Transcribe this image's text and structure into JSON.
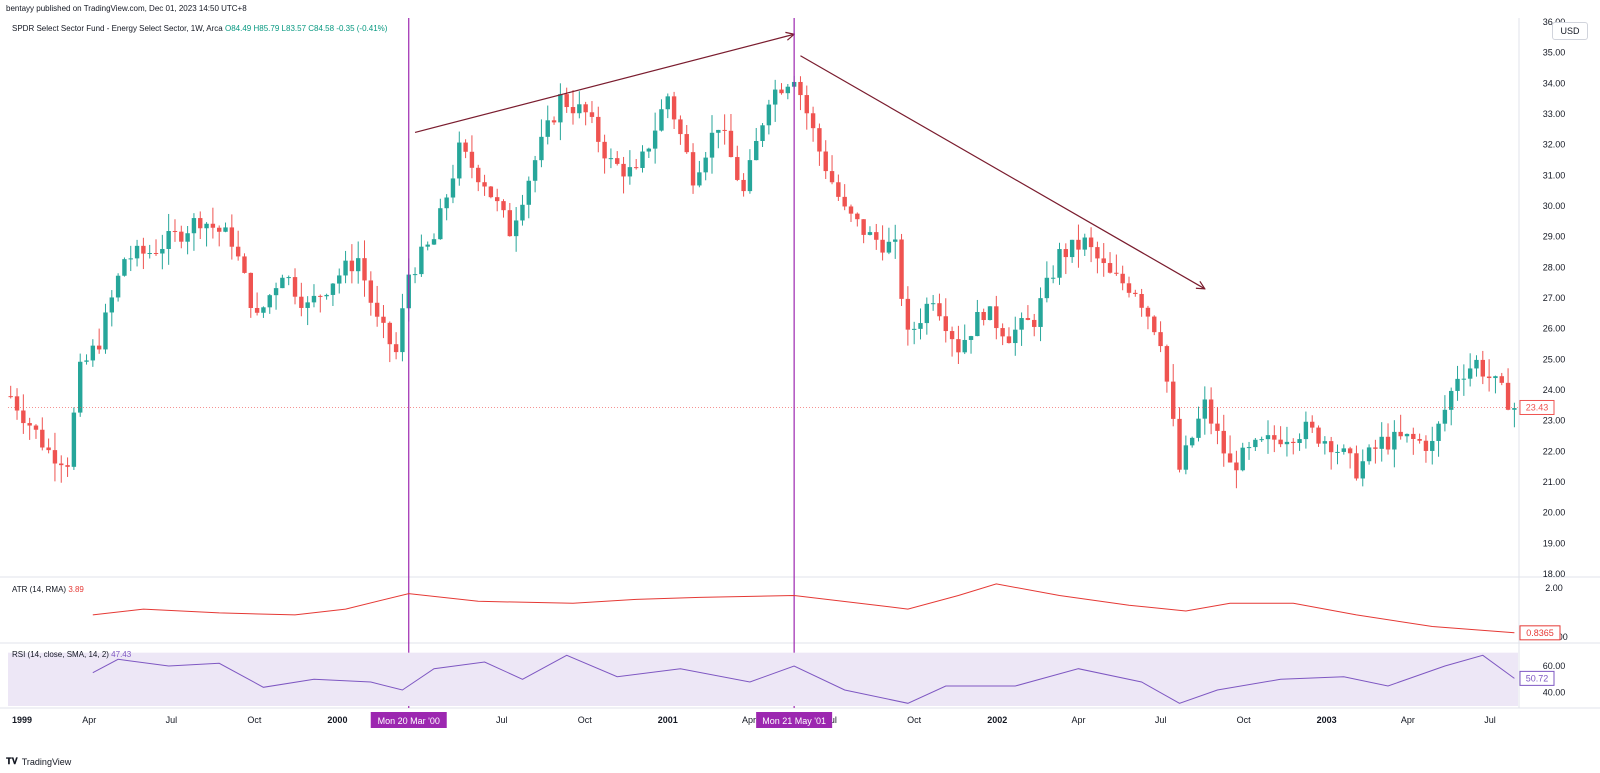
{
  "header": {
    "published": "bentayy published on TradingView.com, Dec 01, 2023 14:50 UTC+8"
  },
  "legend": {
    "symbol": "SPDR Select Sector Fund - Energy Select Sector, 1W, Arca",
    "open_label": "O",
    "open": "84.49",
    "high_label": "H",
    "high": "85.79",
    "low_label": "L",
    "low": "83.57",
    "close_label": "C",
    "close": "84.58",
    "change": "-0.35 (-0.41%)"
  },
  "currency": "USD",
  "colors": {
    "up": "#26a69a",
    "down": "#ef5350",
    "vline": "#9c27b0",
    "trend": "#7a1c2e",
    "atr": "#e53935",
    "rsi": "#7e57c2",
    "rsi_band": "#ede7f6"
  },
  "atr_panel": {
    "label": "ATR (14, RMA)",
    "value": "3.89",
    "axis_labels": [
      "2.00",
      "1.0000"
    ],
    "last": "0.8365"
  },
  "rsi_panel": {
    "label": "RSI (14, close, SMA, 14, 2)",
    "value": "47.43",
    "axis_labels": [
      "60.00",
      "40.00"
    ],
    "last": "50.72"
  },
  "time_axis": [
    "1999",
    "Apr",
    "Jul",
    "Oct",
    "2000",
    "Jul",
    "Oct",
    "2001",
    "Apr",
    "Jul",
    "Oct",
    "2002",
    "Apr",
    "Jul",
    "Oct",
    "2003",
    "Apr",
    "Jul"
  ],
  "markers": [
    "Mon 20 Mar '00",
    "Mon 21 May '01"
  ],
  "footer": {
    "brand": "TradingView",
    "icon": "tradingview-logo-icon"
  },
  "chart_data": [
    {
      "type": "candlestick",
      "title": "SPDR Select Sector Fund - Energy Select Sector, 1W, Arca",
      "x_range": [
        "1999-01-04",
        "2003-07-28"
      ],
      "ylim": [
        18.0,
        36.0
      ],
      "y_ticks": [
        18.0,
        19.0,
        20.0,
        21.0,
        22.0,
        23.0,
        24.0,
        25.0,
        26.0,
        27.0,
        28.0,
        29.0,
        30.0,
        31.0,
        32.0,
        33.0,
        34.0,
        35.0,
        36.0
      ],
      "last_price": 23.43,
      "close_path": [
        {
          "t": "1999-01-04",
          "v": 23.8
        },
        {
          "t": "1999-02-15",
          "v": 22.0
        },
        {
          "t": "1999-03-08",
          "v": 21.7
        },
        {
          "t": "1999-03-22",
          "v": 24.6
        },
        {
          "t": "1999-04-12",
          "v": 25.6
        },
        {
          "t": "1999-05-10",
          "v": 28.3
        },
        {
          "t": "1999-06-07",
          "v": 28.5
        },
        {
          "t": "1999-07-05",
          "v": 29.0
        },
        {
          "t": "1999-08-02",
          "v": 29.6
        },
        {
          "t": "1999-09-06",
          "v": 28.9
        },
        {
          "t": "1999-10-04",
          "v": 26.3
        },
        {
          "t": "1999-11-01",
          "v": 27.9
        },
        {
          "t": "1999-11-29",
          "v": 26.7
        },
        {
          "t": "1999-12-27",
          "v": 27.6
        },
        {
          "t": "2000-01-24",
          "v": 28.3
        },
        {
          "t": "2000-02-14",
          "v": 26.2
        },
        {
          "t": "2000-03-06",
          "v": 25.2
        },
        {
          "t": "2000-03-20",
          "v": 27.8
        },
        {
          "t": "2000-04-17",
          "v": 28.9
        },
        {
          "t": "2000-05-15",
          "v": 31.8
        },
        {
          "t": "2000-06-12",
          "v": 30.8
        },
        {
          "t": "2000-07-10",
          "v": 29.2
        },
        {
          "t": "2000-08-07",
          "v": 31.5
        },
        {
          "t": "2000-09-04",
          "v": 33.5
        },
        {
          "t": "2000-10-02",
          "v": 33.0
        },
        {
          "t": "2000-10-30",
          "v": 31.4
        },
        {
          "t": "2000-11-27",
          "v": 31.0
        },
        {
          "t": "2001-01-01",
          "v": 33.6
        },
        {
          "t": "2001-01-29",
          "v": 31.0
        },
        {
          "t": "2001-02-26",
          "v": 32.7
        },
        {
          "t": "2001-03-26",
          "v": 30.4
        },
        {
          "t": "2001-04-23",
          "v": 33.6
        },
        {
          "t": "2001-05-21",
          "v": 34.3
        },
        {
          "t": "2001-06-18",
          "v": 31.8
        },
        {
          "t": "2001-07-16",
          "v": 29.8
        },
        {
          "t": "2001-08-13",
          "v": 29.0
        },
        {
          "t": "2001-09-10",
          "v": 28.6
        },
        {
          "t": "2001-09-24",
          "v": 25.7
        },
        {
          "t": "2001-10-22",
          "v": 27.1
        },
        {
          "t": "2001-11-19",
          "v": 25.4
        },
        {
          "t": "2001-12-17",
          "v": 26.6
        },
        {
          "t": "2002-01-14",
          "v": 25.8
        },
        {
          "t": "2002-02-11",
          "v": 26.3
        },
        {
          "t": "2002-03-11",
          "v": 28.4
        },
        {
          "t": "2002-04-08",
          "v": 28.8
        },
        {
          "t": "2002-05-06",
          "v": 27.7
        },
        {
          "t": "2002-06-03",
          "v": 27.3
        },
        {
          "t": "2002-07-01",
          "v": 25.7
        },
        {
          "t": "2002-07-22",
          "v": 21.4
        },
        {
          "t": "2002-08-19",
          "v": 23.5
        },
        {
          "t": "2002-09-16",
          "v": 21.5
        },
        {
          "t": "2002-10-14",
          "v": 22.1
        },
        {
          "t": "2002-11-11",
          "v": 22.5
        },
        {
          "t": "2002-12-09",
          "v": 22.7
        },
        {
          "t": "2003-01-06",
          "v": 22.3
        },
        {
          "t": "2003-02-03",
          "v": 21.4
        },
        {
          "t": "2003-03-03",
          "v": 22.3
        },
        {
          "t": "2003-03-31",
          "v": 22.4
        },
        {
          "t": "2003-04-28",
          "v": 22.2
        },
        {
          "t": "2003-05-26",
          "v": 24.5
        },
        {
          "t": "2003-06-16",
          "v": 24.9
        },
        {
          "t": "2003-07-28",
          "v": 23.43
        }
      ],
      "trend_lines": [
        {
          "from": {
            "t": "2000-03-27",
            "v": 32.4
          },
          "to": {
            "t": "2001-05-21",
            "v": 35.6
          },
          "arrow": "end"
        },
        {
          "from": {
            "t": "2001-05-28",
            "v": 34.9
          },
          "to": {
            "t": "2002-08-19",
            "v": 27.3
          },
          "arrow": "end"
        }
      ],
      "vertical_markers": [
        "2000-03-20",
        "2001-05-21"
      ]
    },
    {
      "type": "line",
      "title": "ATR (14, RMA)",
      "ylim": [
        0.6,
        2.2
      ],
      "y_ticks": [
        2.0,
        1.0
      ],
      "points": [
        {
          "t": "1999-04-05",
          "v": 1.3
        },
        {
          "t": "1999-05-31",
          "v": 1.45
        },
        {
          "t": "1999-08-23",
          "v": 1.35
        },
        {
          "t": "1999-11-15",
          "v": 1.3
        },
        {
          "t": "2000-01-10",
          "v": 1.45
        },
        {
          "t": "2000-03-20",
          "v": 1.85
        },
        {
          "t": "2000-06-05",
          "v": 1.65
        },
        {
          "t": "2000-09-18",
          "v": 1.6
        },
        {
          "t": "2000-11-27",
          "v": 1.7
        },
        {
          "t": "2001-02-05",
          "v": 1.75
        },
        {
          "t": "2001-05-21",
          "v": 1.8
        },
        {
          "t": "2001-08-20",
          "v": 1.55
        },
        {
          "t": "2001-09-24",
          "v": 1.45
        },
        {
          "t": "2001-11-19",
          "v": 1.8
        },
        {
          "t": "2001-12-31",
          "v": 2.1
        },
        {
          "t": "2002-03-11",
          "v": 1.8
        },
        {
          "t": "2002-05-27",
          "v": 1.55
        },
        {
          "t": "2002-07-29",
          "v": 1.4
        },
        {
          "t": "2002-09-16",
          "v": 1.6
        },
        {
          "t": "2002-11-25",
          "v": 1.6
        },
        {
          "t": "2003-02-03",
          "v": 1.3
        },
        {
          "t": "2003-04-28",
          "v": 1.0
        },
        {
          "t": "2003-07-28",
          "v": 0.8365
        }
      ],
      "last": 0.8365
    },
    {
      "type": "line",
      "title": "RSI (14, close, SMA, 14, 2)",
      "ylim": [
        30,
        75
      ],
      "y_ticks": [
        60.0,
        40.0
      ],
      "band": [
        30,
        70
      ],
      "points": [
        {
          "t": "1999-04-05",
          "v": 55
        },
        {
          "t": "1999-05-03",
          "v": 65
        },
        {
          "t": "1999-06-28",
          "v": 60
        },
        {
          "t": "1999-08-23",
          "v": 62
        },
        {
          "t": "1999-10-11",
          "v": 44
        },
        {
          "t": "1999-12-06",
          "v": 50
        },
        {
          "t": "2000-02-07",
          "v": 48
        },
        {
          "t": "2000-03-13",
          "v": 42
        },
        {
          "t": "2000-04-17",
          "v": 58
        },
        {
          "t": "2000-06-12",
          "v": 63
        },
        {
          "t": "2000-07-24",
          "v": 50
        },
        {
          "t": "2000-09-11",
          "v": 68
        },
        {
          "t": "2000-11-06",
          "v": 52
        },
        {
          "t": "2001-01-15",
          "v": 58
        },
        {
          "t": "2001-04-02",
          "v": 48
        },
        {
          "t": "2001-05-21",
          "v": 60
        },
        {
          "t": "2001-07-16",
          "v": 42
        },
        {
          "t": "2001-09-24",
          "v": 32
        },
        {
          "t": "2001-11-05",
          "v": 45
        },
        {
          "t": "2002-01-21",
          "v": 45
        },
        {
          "t": "2002-04-01",
          "v": 58
        },
        {
          "t": "2002-06-10",
          "v": 48
        },
        {
          "t": "2002-07-22",
          "v": 32
        },
        {
          "t": "2002-09-02",
          "v": 42
        },
        {
          "t": "2002-11-11",
          "v": 50
        },
        {
          "t": "2003-01-20",
          "v": 52
        },
        {
          "t": "2003-03-10",
          "v": 45
        },
        {
          "t": "2003-05-12",
          "v": 60
        },
        {
          "t": "2003-06-23",
          "v": 68
        },
        {
          "t": "2003-07-28",
          "v": 50.72
        }
      ],
      "last": 50.72
    }
  ]
}
